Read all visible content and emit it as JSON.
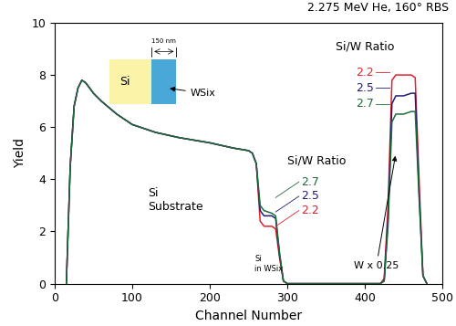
{
  "chart_data": {
    "type": "line",
    "title": "2.275 MeV He, 160° RBS",
    "x_label": "Channel Number",
    "y_label": "Yield",
    "xlim": [
      0,
      500
    ],
    "ylim": [
      0,
      10
    ],
    "xticks": [
      0,
      100,
      200,
      300,
      400,
      500
    ],
    "yticks": [
      0,
      2,
      4,
      6,
      8,
      10
    ],
    "x": [
      15,
      20,
      25,
      30,
      35,
      40,
      50,
      60,
      80,
      100,
      130,
      160,
      200,
      230,
      250,
      255,
      260,
      265,
      270,
      280,
      285,
      290,
      295,
      300,
      420,
      425,
      430,
      435,
      440,
      450,
      460,
      465,
      470,
      475,
      480
    ],
    "series": [
      {
        "name": "2.2",
        "color": "#e0202c",
        "values": [
          0,
          4.5,
          6.8,
          7.5,
          7.8,
          7.7,
          7.3,
          7.0,
          6.5,
          6.1,
          5.8,
          5.6,
          5.4,
          5.2,
          5.1,
          5.0,
          4.6,
          2.4,
          2.2,
          2.2,
          2.1,
          1.0,
          0.1,
          0,
          0,
          0.2,
          3.0,
          7.8,
          8.0,
          8.0,
          8.0,
          7.9,
          4.0,
          0.3,
          0
        ]
      },
      {
        "name": "2.5",
        "color": "#1c1c78",
        "values": [
          0,
          4.5,
          6.8,
          7.5,
          7.8,
          7.7,
          7.3,
          7.0,
          6.5,
          6.1,
          5.8,
          5.6,
          5.4,
          5.2,
          5.1,
          5.0,
          4.6,
          2.8,
          2.6,
          2.6,
          2.5,
          1.1,
          0.1,
          0,
          0,
          0.1,
          2.5,
          6.9,
          7.2,
          7.2,
          7.3,
          7.3,
          3.5,
          0.3,
          0
        ]
      },
      {
        "name": "2.7",
        "color": "#1e6b3a",
        "values": [
          0,
          4.5,
          6.8,
          7.5,
          7.8,
          7.7,
          7.3,
          7.0,
          6.5,
          6.1,
          5.8,
          5.6,
          5.4,
          5.2,
          5.1,
          5.0,
          4.6,
          3.0,
          2.8,
          2.7,
          2.6,
          1.2,
          0.1,
          0,
          0,
          0.1,
          2.2,
          6.2,
          6.5,
          6.5,
          6.6,
          6.6,
          3.3,
          0.3,
          0
        ]
      }
    ],
    "annotations": [
      "Si/W Ratio",
      "Si/W Ratio",
      "Si\nSubstrate",
      "Si\nin WSix",
      "W x 0.25"
    ],
    "diagram": {
      "left": "Si",
      "right": "WSix",
      "thickness": "150 nm"
    }
  }
}
